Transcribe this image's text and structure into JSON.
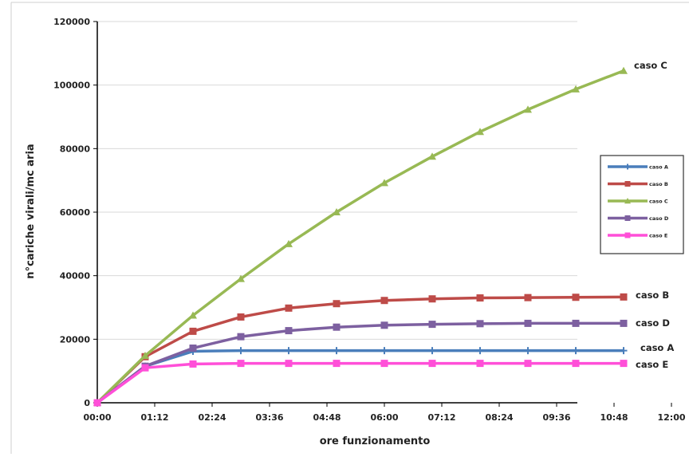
{
  "chart_data": {
    "type": "line",
    "xlabel": "ore funzionamento",
    "ylabel": "n°cariche virali/mc aria",
    "ylim": [
      0,
      120000
    ],
    "y_ticks": [
      "0",
      "20000",
      "40000",
      "60000",
      "80000",
      "100000",
      "120000"
    ],
    "x_tick_labels": [
      "00:00",
      "01:12",
      "02:24",
      "03:36",
      "04:48",
      "06:00",
      "07:12",
      "08:24",
      "09:36",
      "10:48",
      "12:00"
    ],
    "x_hours": [
      0,
      1,
      2,
      3,
      4,
      5,
      6,
      7,
      8,
      9,
      10,
      11
    ],
    "grid": "horizontal",
    "legend_position": "right",
    "series": [
      {
        "name": "caso A",
        "end_label": "caso A",
        "color": "#4a7ebb",
        "marker": "cross",
        "values": [
          0,
          11500,
          16200,
          16400,
          16400,
          16400,
          16400,
          16400,
          16400,
          16400,
          16400,
          16400
        ]
      },
      {
        "name": "caso B",
        "end_label": "caso B",
        "color": "#be4b48",
        "marker": "square",
        "values": [
          0,
          14500,
          22500,
          27000,
          29800,
          31200,
          32200,
          32700,
          33000,
          33100,
          33200,
          33300
        ]
      },
      {
        "name": "caso C",
        "end_label": "caso C",
        "color": "#98b954",
        "marker": "triangle",
        "values": [
          0,
          14800,
          27500,
          39000,
          50000,
          60000,
          69200,
          77500,
          85300,
          92300,
          98700,
          104500
        ]
      },
      {
        "name": "caso D",
        "end_label": "caso D",
        "color": "#7d60a0",
        "marker": "square",
        "values": [
          0,
          11500,
          17200,
          20800,
          22700,
          23800,
          24400,
          24700,
          24900,
          25000,
          25000,
          25000
        ]
      },
      {
        "name": "caso E",
        "end_label": "caso E",
        "color": "#ff4fd8",
        "marker": "square",
        "values": [
          0,
          11000,
          12200,
          12400,
          12400,
          12400,
          12400,
          12400,
          12400,
          12400,
          12400,
          12400
        ]
      }
    ]
  }
}
